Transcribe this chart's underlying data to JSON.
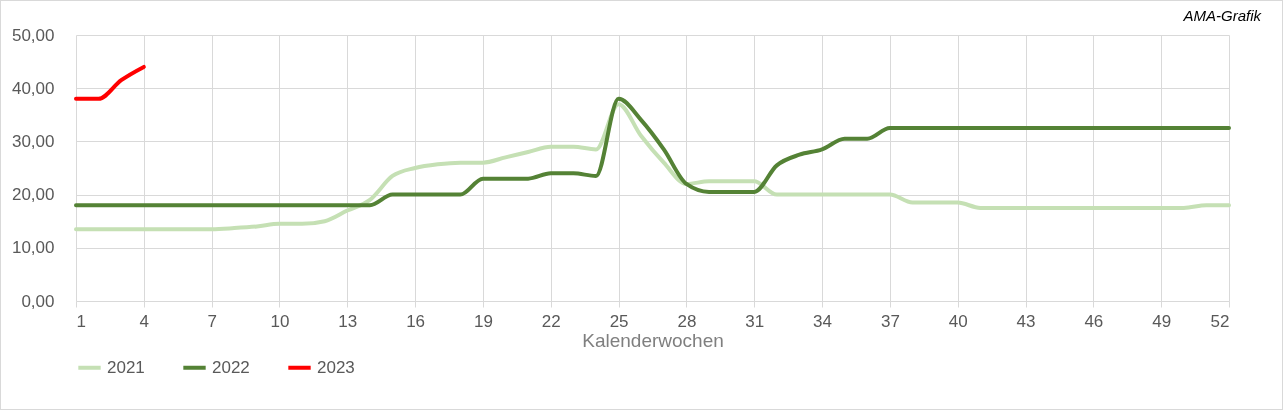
{
  "chart_data": {
    "type": "line",
    "xlabel": "Kalenderwochen",
    "annotations": [
      "AMA-Grafik"
    ],
    "x": [
      1,
      2,
      3,
      4,
      5,
      6,
      7,
      8,
      9,
      10,
      11,
      12,
      13,
      14,
      15,
      16,
      17,
      18,
      19,
      20,
      21,
      22,
      23,
      24,
      25,
      26,
      27,
      28,
      29,
      30,
      31,
      32,
      33,
      34,
      35,
      36,
      37,
      38,
      39,
      40,
      41,
      42,
      43,
      44,
      45,
      46,
      47,
      48,
      49,
      50,
      51,
      52
    ],
    "xlim": [
      1,
      52
    ],
    "xticks": [
      1,
      4,
      7,
      10,
      13,
      16,
      19,
      22,
      25,
      28,
      31,
      34,
      37,
      40,
      43,
      46,
      49,
      52
    ],
    "ylim": [
      0,
      50
    ],
    "yticks": [
      {
        "value": 0,
        "label": "0,00"
      },
      {
        "value": 10,
        "label": "10,00"
      },
      {
        "value": 20,
        "label": "20,00"
      },
      {
        "value": 30,
        "label": "30,00"
      },
      {
        "value": 40,
        "label": "40,00"
      },
      {
        "value": 50,
        "label": "50,00"
      }
    ],
    "grid": true,
    "legend": "bottom",
    "marker": "none",
    "line_style": "solid",
    "series": [
      {
        "name": "2021",
        "color": "#c5e0b4",
        "values": [
          13.5,
          13.5,
          13.5,
          13.5,
          13.5,
          13.5,
          13.5,
          13.7,
          14,
          14.5,
          14.5,
          15,
          17,
          19,
          23.5,
          25,
          25.7,
          26,
          26,
          27,
          28,
          29,
          29,
          28.5,
          37,
          31,
          26,
          22,
          22.5,
          22.5,
          22.5,
          20,
          20,
          20,
          20,
          20,
          20,
          18.5,
          18.5,
          18.5,
          17.5,
          17.5,
          17.5,
          17.5,
          17.5,
          17.5,
          17.5,
          17.5,
          17.5,
          17.5,
          18,
          18
        ]
      },
      {
        "name": "2022",
        "color": "#548235",
        "values": [
          18,
          18,
          18,
          18,
          18,
          18,
          18,
          18,
          18,
          18,
          18,
          18,
          18,
          18,
          20,
          20,
          20,
          20,
          23,
          23,
          23,
          24,
          24,
          23.5,
          38,
          34,
          28.5,
          22,
          20.5,
          20.5,
          20.5,
          25.5,
          27.5,
          28.5,
          30.5,
          30.5,
          32.5,
          32.5,
          32.5,
          32.5,
          32.5,
          32.5,
          32.5,
          32.5,
          32.5,
          32.5,
          32.5,
          32.5,
          32.5,
          32.5,
          32.5,
          32.5
        ]
      },
      {
        "name": "2023",
        "color": "#ff0000",
        "values": [
          38,
          38,
          41.5,
          44,
          null,
          null,
          null,
          null,
          null,
          null,
          null,
          null,
          null,
          null,
          null,
          null,
          null,
          null,
          null,
          null,
          null,
          null,
          null,
          null,
          null,
          null,
          null,
          null,
          null,
          null,
          null,
          null,
          null,
          null,
          null,
          null,
          null,
          null,
          null,
          null,
          null,
          null,
          null,
          null,
          null,
          null,
          null,
          null,
          null,
          null,
          null,
          null
        ]
      }
    ]
  }
}
